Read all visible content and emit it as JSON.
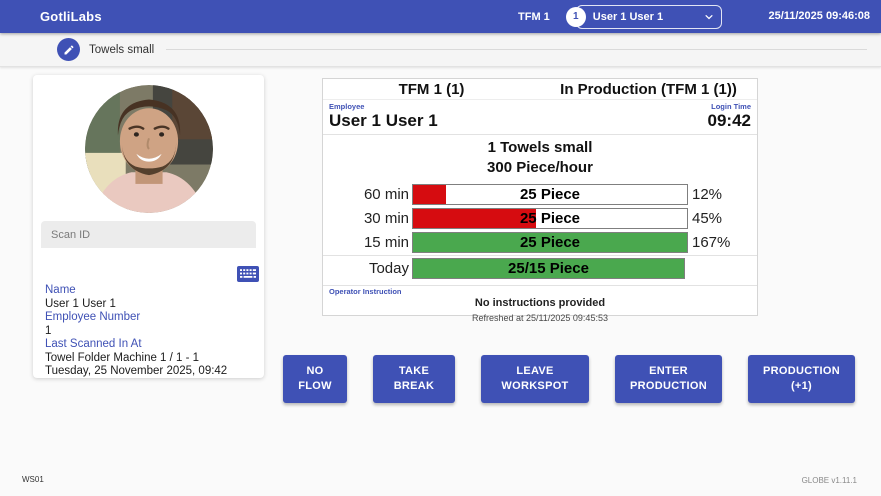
{
  "app_bar": {
    "brand": "GotliLabs",
    "machine_label": "TFM 1",
    "user_count": "1",
    "selected_user": "User 1 User 1",
    "datetime": "25/11/2025 09:46:08"
  },
  "stepper": {
    "step_label": "Towels small"
  },
  "employee_card": {
    "scan_id_placeholder": "Scan ID",
    "name_label": "Name",
    "name_value": "User 1 User 1",
    "employee_number_label": "Employee Number",
    "employee_number_value": "1",
    "last_scanned_label": "Last Scanned In At",
    "last_scanned_location": "Towel Folder Machine 1 / 1 - 1",
    "last_scanned_time": "Tuesday, 25 November 2025, 09:42"
  },
  "production_panel": {
    "title_left": "TFM 1 (1)",
    "title_right": "In Production (TFM 1 (1))",
    "employee_label": "Employee",
    "login_time_label": "Login Time",
    "employee_name": "User 1 User 1",
    "login_time": "09:42",
    "product_line1": "1 Towels small",
    "product_line2": "300 Piece/hour",
    "rows": [
      {
        "label": "60 min",
        "bar_text": "25 Piece",
        "percent": "12%",
        "fill_percent": 12,
        "color_key": "bar_red"
      },
      {
        "label": "30 min",
        "bar_text": "25 Piece",
        "percent": "45%",
        "fill_percent": 45,
        "color_key": "bar_red"
      },
      {
        "label": "15 min",
        "bar_text": "25 Piece",
        "percent": "167%",
        "fill_percent": 100,
        "color_key": "bar_green"
      },
      {
        "label": "Today",
        "bar_text": "25/15 Piece",
        "percent": "",
        "fill_percent": 100,
        "color_key": "bar_green"
      }
    ],
    "operator_instruction_label": "Operator Instruction",
    "operator_instruction_text": "No instructions provided",
    "refreshed_text": "Refreshed at 25/11/2025 09:45:53"
  },
  "action_buttons": [
    {
      "label": "NO FLOW"
    },
    {
      "label": "TAKE BREAK"
    },
    {
      "label": "LEAVE WORKSPOT"
    },
    {
      "label": "ENTER PRODUCTION"
    },
    {
      "label": "PRODUCTION (+1)"
    }
  ],
  "footer": {
    "workstation_id": "WS01",
    "version": "GLOBE v1.11.1"
  },
  "colors": {
    "primary": "#3f51b5",
    "bar_red": "#d60c10",
    "bar_green": "#4aa84e"
  }
}
